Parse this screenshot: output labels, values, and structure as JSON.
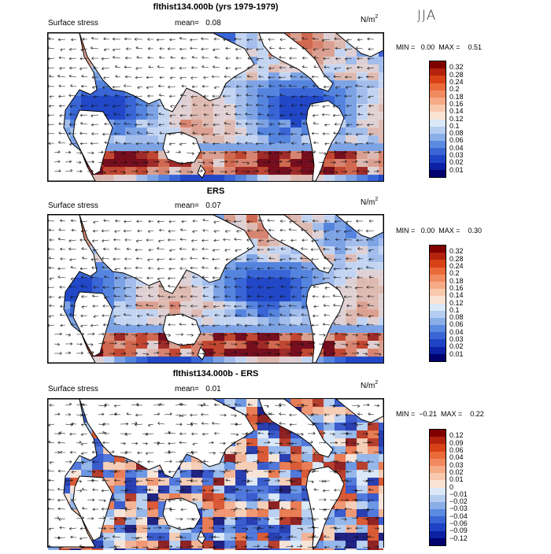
{
  "season": "JJA",
  "panels": [
    {
      "title": "flthist134.000b (yrs 1979-1979)",
      "variable": "Surface stress",
      "mean_label": "mean=",
      "mean_value": "0.08",
      "unit_base": "N/m",
      "unit_exp": "2",
      "minmax": "MIN =   0.00  MAX =    0.51",
      "colorbar": {
        "labels": [
          "0.32",
          "0.28",
          "0.24",
          "0.2",
          "0.18",
          "0.16",
          "0.14",
          "0.12",
          "0.1",
          "0.08",
          "0.06",
          "0.04",
          "0.03",
          "0.02",
          "0.01"
        ],
        "colors": [
          "#800000",
          "#b2220c",
          "#d84216",
          "#ea6a3a",
          "#f28a5f",
          "#f6aa86",
          "#f9c9ad",
          "#fbe3d3",
          "#dbe8f7",
          "#b5cdf0",
          "#8aaee8",
          "#5b8ae0",
          "#3a65d6",
          "#1e43c4",
          "#0a22a3",
          "#00006e"
        ]
      }
    },
    {
      "title": "ERS",
      "variable": "Surface stress",
      "mean_label": "mean=",
      "mean_value": "0.07",
      "unit_base": "N/m",
      "unit_exp": "2",
      "minmax": "MIN =   0.00  MAX =    0.30",
      "colorbar": {
        "labels": [
          "0.32",
          "0.28",
          "0.24",
          "0.2",
          "0.18",
          "0.16",
          "0.14",
          "0.12",
          "0.1",
          "0.08",
          "0.06",
          "0.04",
          "0.03",
          "0.02",
          "0.01"
        ],
        "colors": [
          "#800000",
          "#b2220c",
          "#d84216",
          "#ea6a3a",
          "#f28a5f",
          "#f6aa86",
          "#f9c9ad",
          "#fbe3d3",
          "#dbe8f7",
          "#b5cdf0",
          "#8aaee8",
          "#5b8ae0",
          "#3a65d6",
          "#1e43c4",
          "#0a22a3",
          "#00006e"
        ]
      }
    },
    {
      "title": "flthist134.000b - ERS",
      "variable": "Surface stress",
      "mean_label": "mean=",
      "mean_value": "0.01",
      "unit_base": "N/m",
      "unit_exp": "2",
      "minmax": "MIN =  −0.21  MAX =    0.22",
      "colorbar": {
        "labels": [
          "0.12",
          "0.09",
          "0.06",
          "0.04",
          "0.03",
          "0.02",
          "0.01",
          "0",
          "−0.01",
          "−0.02",
          "−0.03",
          "−0.04",
          "−0.06",
          "−0.09",
          "−0.12"
        ],
        "colors": [
          "#800000",
          "#b2220c",
          "#d84216",
          "#ea6a3a",
          "#f28a5f",
          "#f6aa86",
          "#f9c9ad",
          "#fbe3d3",
          "#dbe8f7",
          "#b5cdf0",
          "#8aaee8",
          "#5b8ae0",
          "#3a65d6",
          "#1e43c4",
          "#0a22a3",
          "#00006e"
        ]
      }
    }
  ],
  "chart_data": [
    {
      "type": "heatmap",
      "title": "flthist134.000b (yrs 1979-1979)",
      "field": "Surface stress (N/m2), JJA",
      "mean": 0.08,
      "min": 0.0,
      "max": 0.51,
      "levels": [
        0.01,
        0.02,
        0.03,
        0.04,
        0.06,
        0.08,
        0.1,
        0.12,
        0.14,
        0.16,
        0.18,
        0.2,
        0.24,
        0.28,
        0.32
      ]
    },
    {
      "type": "heatmap",
      "title": "ERS",
      "field": "Surface stress (N/m2), JJA",
      "mean": 0.07,
      "min": 0.0,
      "max": 0.3,
      "levels": [
        0.01,
        0.02,
        0.03,
        0.04,
        0.06,
        0.08,
        0.1,
        0.12,
        0.14,
        0.16,
        0.18,
        0.2,
        0.24,
        0.28,
        0.32
      ]
    },
    {
      "type": "heatmap",
      "title": "flthist134.000b - ERS",
      "field": "Surface stress difference (N/m2), JJA",
      "mean": 0.01,
      "min": -0.21,
      "max": 0.22,
      "levels": [
        -0.12,
        -0.09,
        -0.06,
        -0.04,
        -0.03,
        -0.02,
        -0.01,
        0,
        0.01,
        0.02,
        0.03,
        0.04,
        0.06,
        0.09,
        0.12
      ]
    }
  ]
}
